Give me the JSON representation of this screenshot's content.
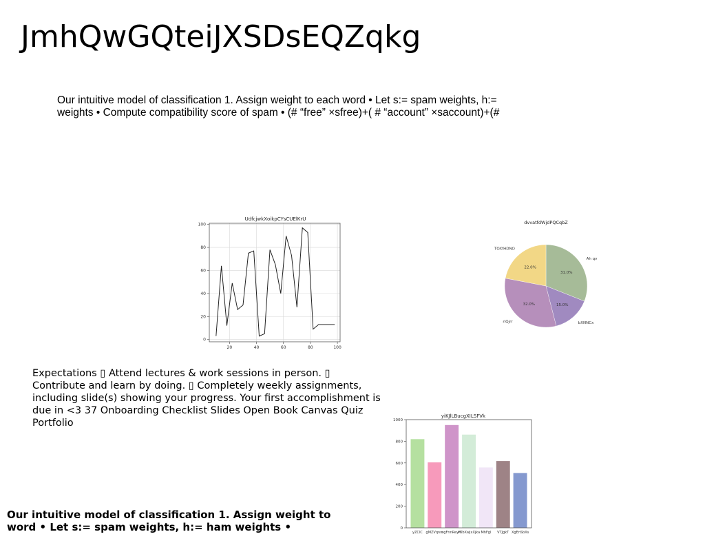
{
  "slide": {
    "title": "JmhQwGQteiJXSDsEQZqkg",
    "para1": "Our intuitive model of classification 1. Assign weight to each word • Let s:= spam weights, h:= weights • Compute compatibility score of spam • (# “free” ×sfree)+( # “account” ×saccount)+(#",
    "para2": "Expectations ▯ Attend lectures & work sessions in person. ▯ Contribute and learn by doing. ▯ Completely weekly assignments, including slide(s) showing your progress. Your first accomplishment is due in <3 37 Onboarding Checklist Slides Open Book Canvas Quiz Portfolio",
    "para3": "Our intuitive model of classification 1. Assign weight to word • Let s:= spam weights, h:= ham weights •"
  },
  "chart_data": [
    {
      "type": "line",
      "title": "UdfcjwkXoikpCYsCUElKrU",
      "x": [
        10,
        14,
        18,
        22,
        26,
        30,
        34,
        38,
        42,
        46,
        50,
        54,
        58,
        62,
        66,
        70,
        74,
        78,
        82,
        86,
        90,
        94,
        98
      ],
      "y": [
        3,
        64,
        12,
        49,
        26,
        30,
        75,
        77,
        3,
        5,
        78,
        65,
        40,
        90,
        73,
        28,
        97,
        93,
        9,
        13,
        13,
        13,
        13
      ],
      "xlim": [
        5,
        102
      ],
      "ylim": [
        -2,
        101
      ],
      "xticks": [
        20,
        40,
        60,
        80,
        100
      ],
      "yticks": [
        0,
        20,
        40,
        60,
        80,
        100
      ],
      "grid": true,
      "color": "#222222"
    },
    {
      "type": "pie",
      "title": "dvvatfdWjdPQCqbZ",
      "slices": [
        {
          "label": "Ah qv",
          "value": 31.0,
          "pct": "31.0%",
          "color": "#a6bb98"
        },
        {
          "label": "bXNNCx",
          "value": 15.0,
          "pct": "15.0%",
          "color": "#a08ac0"
        },
        {
          "label": "rIQjrr",
          "value": 32.0,
          "pct": "32.0%",
          "color": "#b68fbb"
        },
        {
          "label": "TOXfHDNO",
          "value": 22.0,
          "pct": "22.0%",
          "color": "#f2d786"
        }
      ]
    },
    {
      "type": "bar",
      "title": "yiKJlLBucgXILSFVk",
      "categories": [
        "yZClC",
        "gMZVqnm",
        "egFnnReym",
        "VTbXwJxXjka",
        "MhFgl",
        "VTJgkT",
        "XgEnSbXs"
      ],
      "values": [
        820,
        605,
        950,
        862,
        558,
        617,
        507
      ],
      "colors": [
        "#b5e0a0",
        "#f79abb",
        "#cf94c9",
        "#d3ecd8",
        "#f1e6f7",
        "#9e8386",
        "#8599cf"
      ],
      "ylim": [
        0,
        1000
      ],
      "yticks": [
        0,
        200,
        400,
        600,
        800,
        1000
      ]
    }
  ]
}
